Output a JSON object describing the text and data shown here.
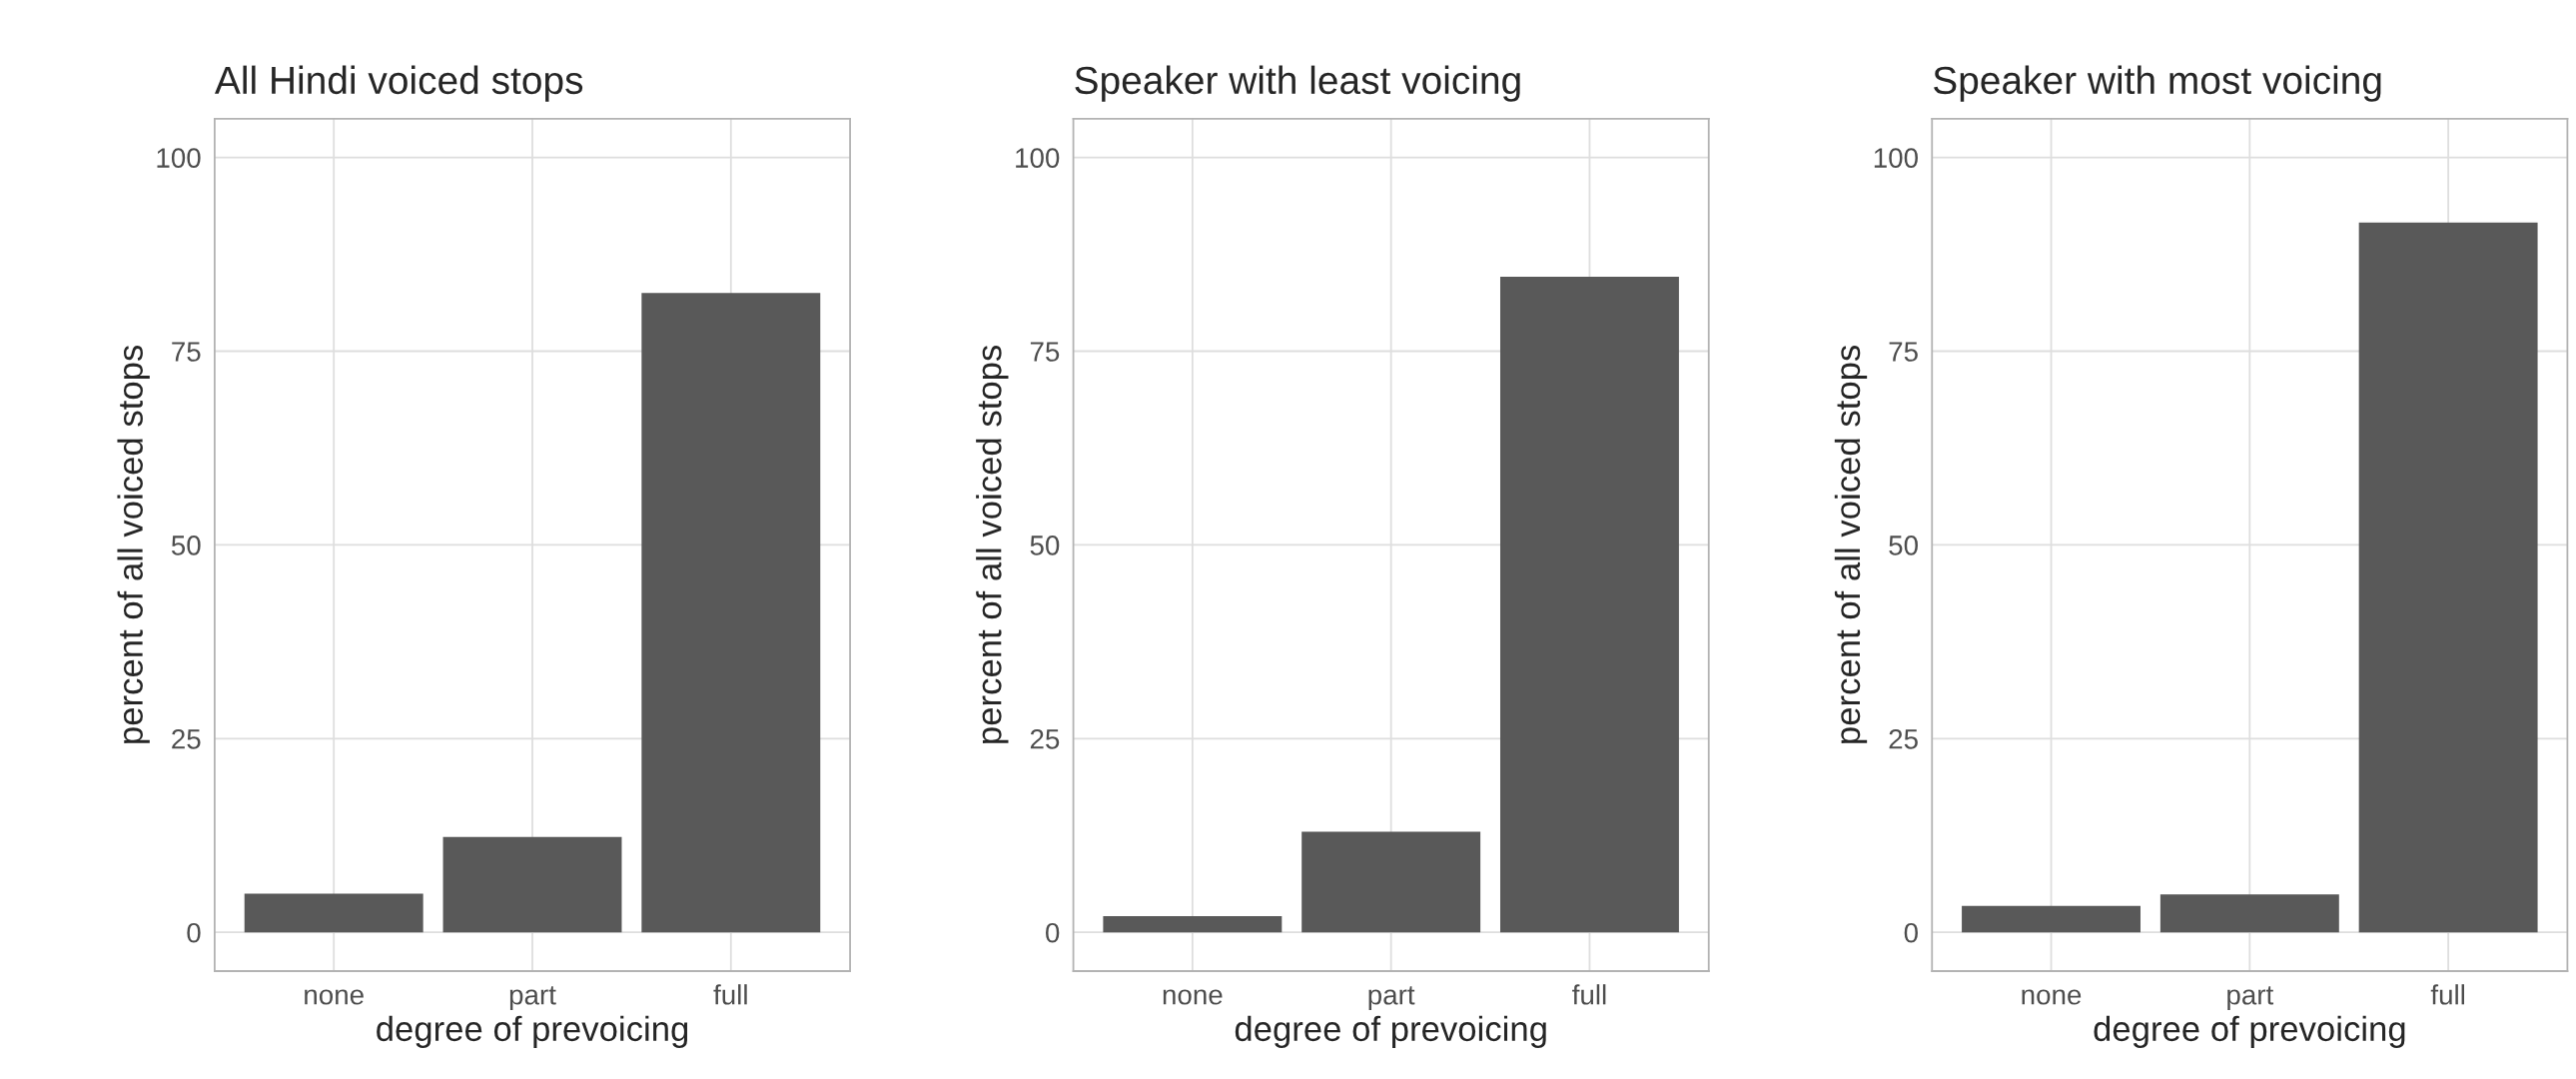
{
  "chart_data": [
    {
      "type": "bar",
      "title": "All Hindi voiced stops",
      "xlabel": "degree of prevoicing",
      "ylabel": "percent of all voiced stops",
      "categories": [
        "none",
        "part",
        "full"
      ],
      "values": [
        5.0,
        12.3,
        82.5
      ],
      "color": "#595959",
      "ylim": [
        -5,
        105
      ],
      "yticks": [
        0,
        25,
        50,
        75,
        100
      ],
      "grid": true
    },
    {
      "type": "bar",
      "title": "Speaker with least voicing",
      "xlabel": "degree of prevoicing",
      "ylabel": "percent of all voiced stops",
      "categories": [
        "none",
        "part",
        "full"
      ],
      "values": [
        2.1,
        13.0,
        84.6
      ],
      "color": "#595959",
      "ylim": [
        -5,
        105
      ],
      "yticks": [
        0,
        25,
        50,
        75,
        100
      ],
      "grid": true
    },
    {
      "type": "bar",
      "title": "Speaker with most voicing",
      "xlabel": "degree of prevoicing",
      "ylabel": "percent of all voiced stops",
      "categories": [
        "none",
        "part",
        "full"
      ],
      "values": [
        3.4,
        4.9,
        91.6
      ],
      "color": "#595959",
      "ylim": [
        -5,
        105
      ],
      "yticks": [
        0,
        25,
        50,
        75,
        100
      ],
      "grid": true
    }
  ]
}
